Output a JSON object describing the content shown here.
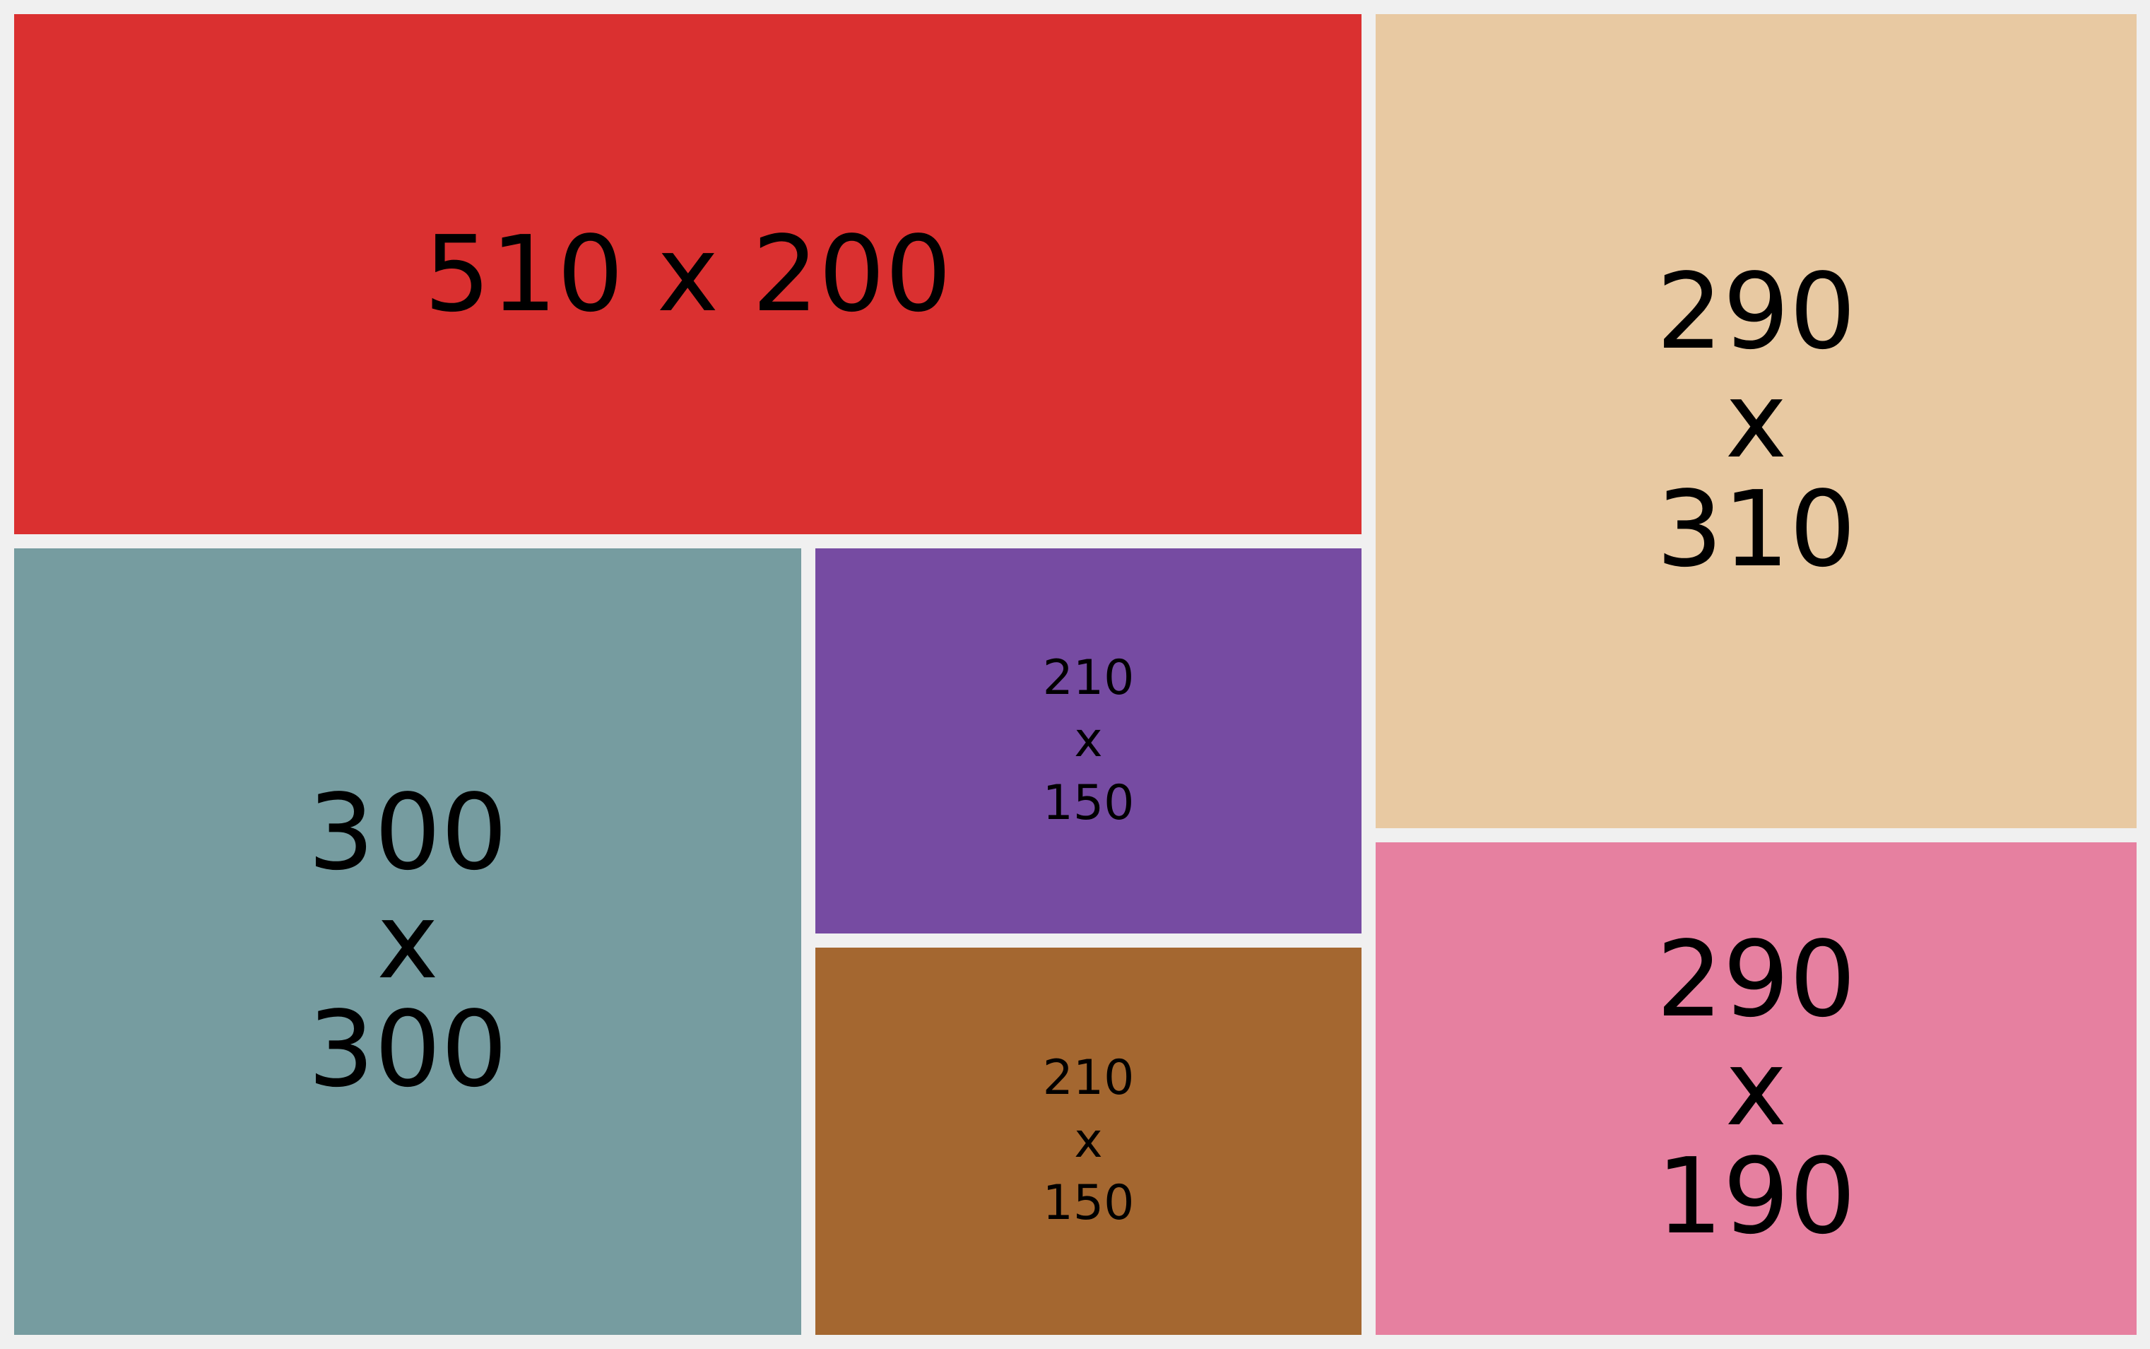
{
  "tiles": [
    {
      "id": "tile-a",
      "label": "510 x 200",
      "color": "#da3030"
    },
    {
      "id": "tile-b",
      "label": "290\nx\n310",
      "color": "#e8c9a2"
    },
    {
      "id": "tile-c",
      "label": "300\nx\n300",
      "color": "#769ca0"
    },
    {
      "id": "tile-d",
      "label": "210\nx\n150",
      "color": "#764ba2"
    },
    {
      "id": "tile-e",
      "label": "210\nx\n150",
      "color": "#a46730"
    },
    {
      "id": "tile-f",
      "label": "290\nx\n190",
      "color": "#e680a0"
    }
  ]
}
